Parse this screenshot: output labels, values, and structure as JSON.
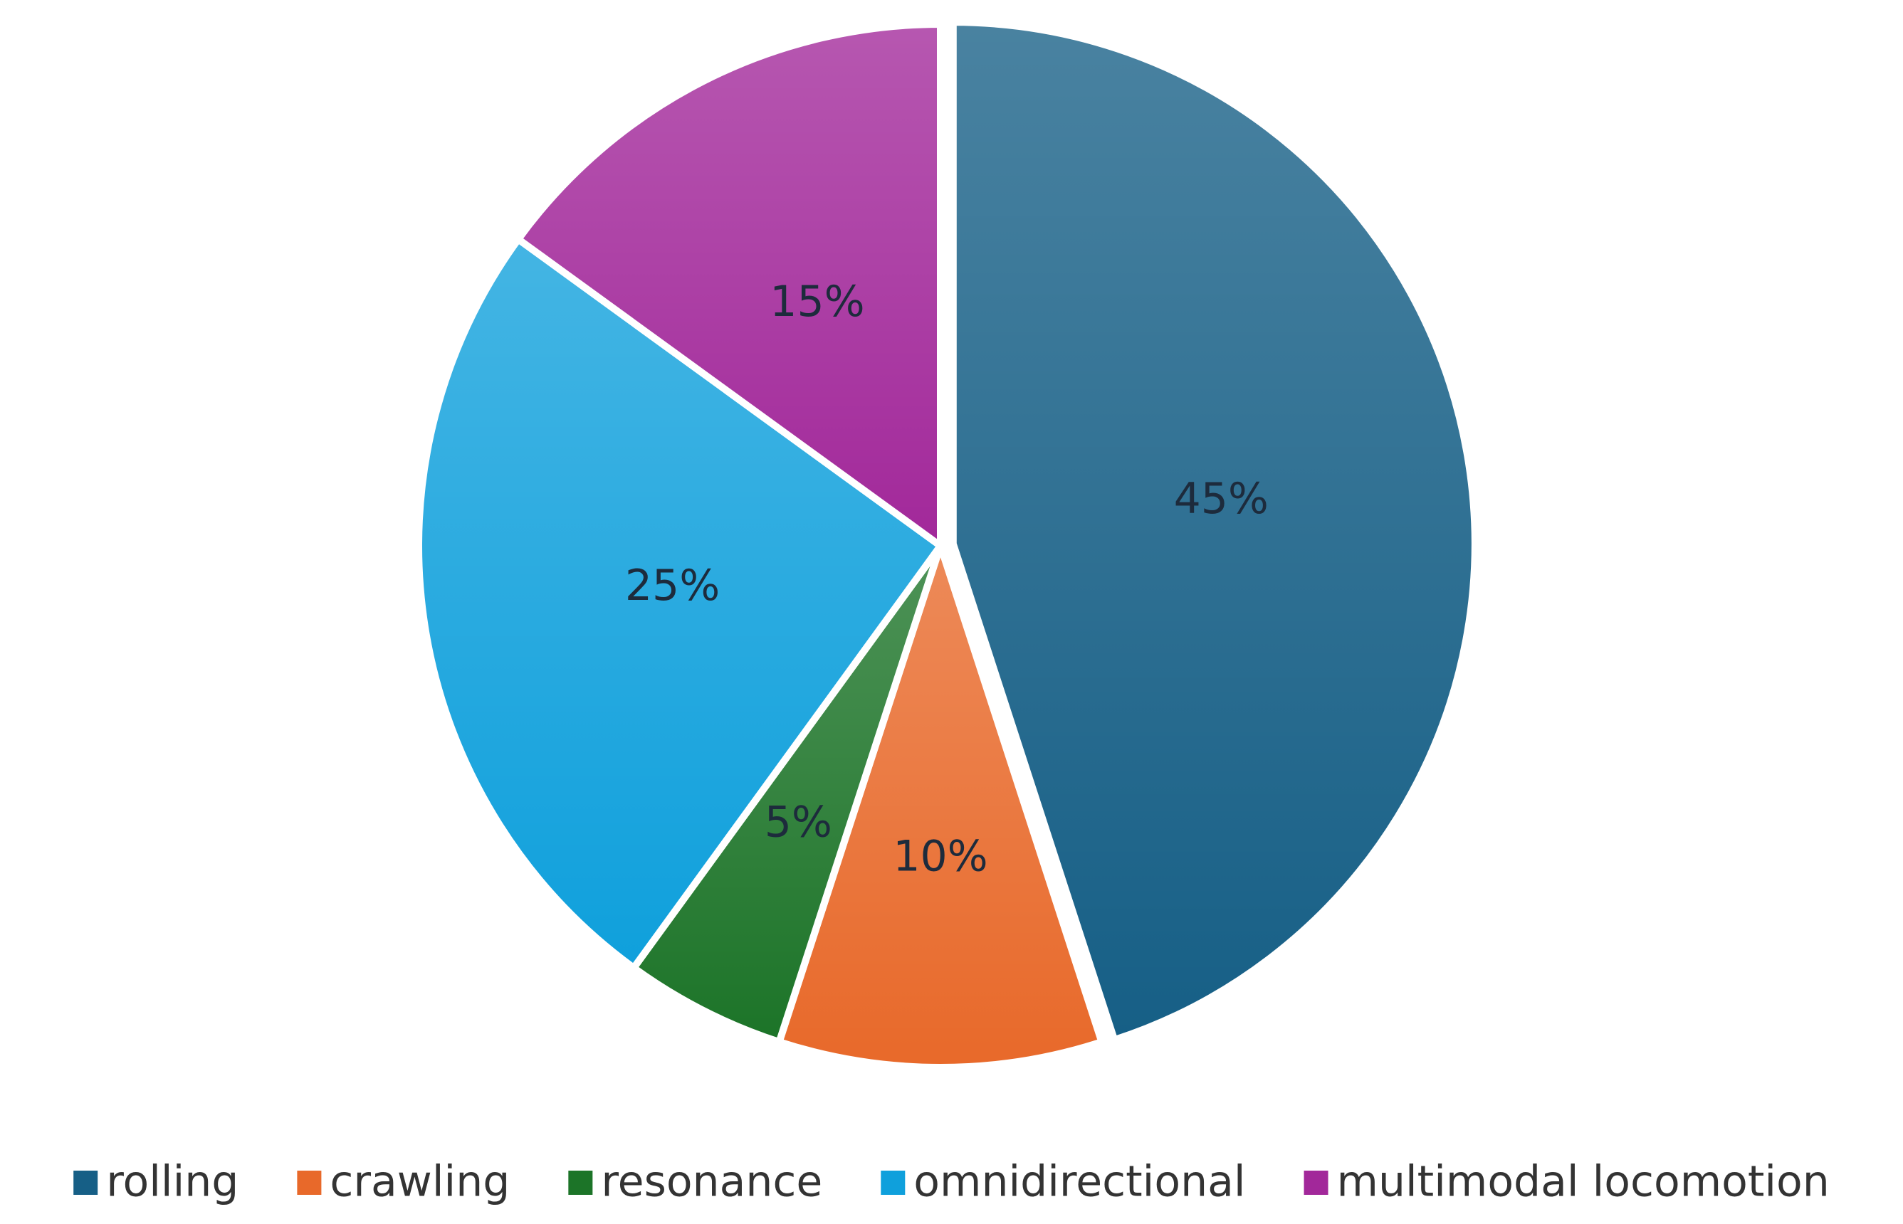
{
  "chart_data": {
    "type": "pie",
    "categories": [
      "rolling",
      "crawling",
      "resonance",
      "omnidirectional",
      "multimodal locomotion"
    ],
    "values": [
      45,
      10,
      5,
      25,
      15
    ],
    "value_labels": [
      "45%",
      "10%",
      "5%",
      "25%",
      "15%"
    ],
    "colors": [
      "#165f86",
      "#e8692a",
      "#1c7428",
      "#0fa0dc",
      "#a2289a"
    ],
    "legend": "bottom"
  }
}
